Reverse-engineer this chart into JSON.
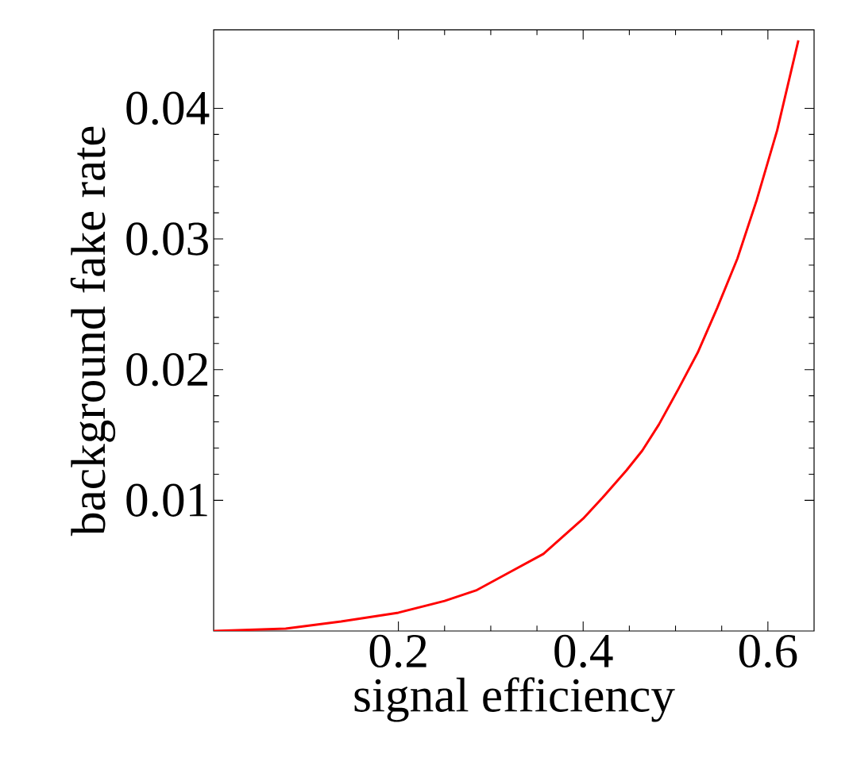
{
  "chart_data": {
    "type": "line",
    "xlabel": "signal efficiency",
    "ylabel": "background fake rate",
    "xlim": [
      0,
      0.65
    ],
    "ylim": [
      0,
      0.046
    ],
    "xticks": [
      0.2,
      0.4,
      0.6
    ],
    "yticks": [
      0.01,
      0.02,
      0.03,
      0.04
    ],
    "grid": false,
    "marker": "none",
    "line_style": "solid",
    "series": [
      {
        "color": "#ff0000",
        "x": [
          0,
          0.078,
          0.138,
          0.2,
          0.25,
          0.284,
          0.318,
          0.357,
          0.4,
          0.421,
          0.447,
          0.464,
          0.482,
          0.503,
          0.524,
          0.545,
          0.567,
          0.588,
          0.61,
          0.633
        ],
        "values": [
          0,
          0.00018,
          0.00073,
          0.0014,
          0.0023,
          0.0031,
          0.0044,
          0.0059,
          0.0086,
          0.0102,
          0.0123,
          0.0138,
          0.0158,
          0.0185,
          0.0213,
          0.0247,
          0.0285,
          0.033,
          0.0383,
          0.0452
        ]
      }
    ]
  }
}
